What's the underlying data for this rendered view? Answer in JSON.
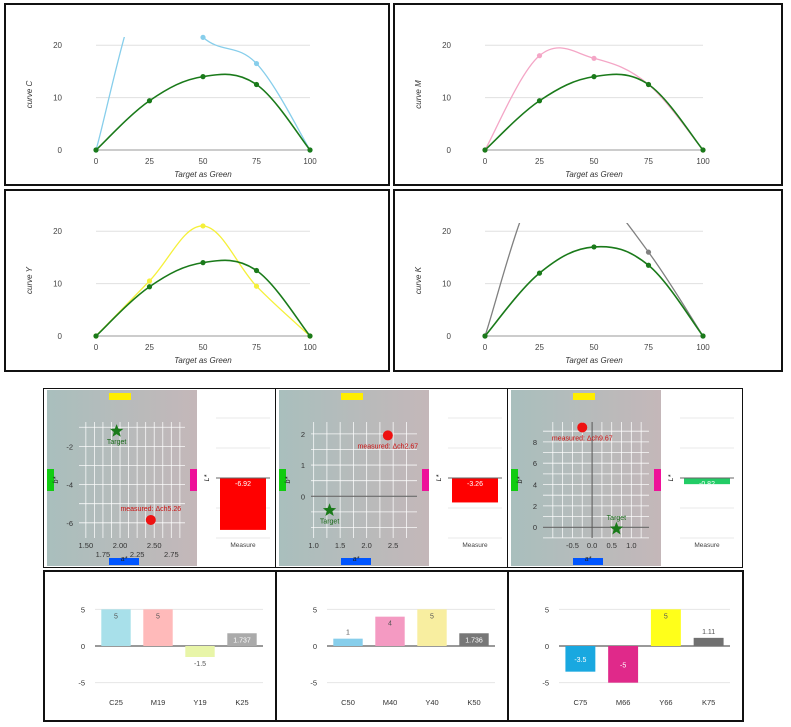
{
  "colors": {
    "green": "#1a7a1a",
    "cyan": "#87ceeb",
    "magenta": "#f4a6c6",
    "yellow": "#f5f03a",
    "black": "#808080",
    "grid": "#e0e0e0"
  },
  "chart_data": [
    {
      "type": "line",
      "xlabel": "Target as Green",
      "ylabel": "curve C",
      "xlim": [
        0,
        100
      ],
      "ylim": [
        0,
        25
      ],
      "xticks": [
        0,
        25,
        50,
        75,
        100
      ],
      "yticks": [
        0,
        10,
        20
      ],
      "grid": true,
      "series": [
        {
          "color": "cyan",
          "x": [
            0,
            25,
            50,
            75,
            100
          ],
          "y": [
            0,
            34,
            21.5,
            16.5,
            0
          ]
        },
        {
          "color": "green",
          "x": [
            0,
            25,
            50,
            75,
            100
          ],
          "y": [
            0,
            9.4,
            14,
            12.5,
            0
          ]
        }
      ]
    },
    {
      "type": "line",
      "xlabel": "Target as Green",
      "ylabel": "curve M",
      "xlim": [
        0,
        100
      ],
      "ylim": [
        0,
        25
      ],
      "xticks": [
        0,
        25,
        50,
        75,
        100
      ],
      "yticks": [
        0,
        10,
        20
      ],
      "grid": true,
      "series": [
        {
          "color": "magenta",
          "x": [
            0,
            25,
            50,
            75,
            100
          ],
          "y": [
            0,
            18,
            17.5,
            12.5,
            0
          ]
        },
        {
          "color": "green",
          "x": [
            0,
            25,
            50,
            75,
            100
          ],
          "y": [
            0,
            9.4,
            14,
            12.5,
            0
          ]
        }
      ]
    },
    {
      "type": "line",
      "xlabel": "Target as Green",
      "ylabel": "curve Y",
      "xlim": [
        0,
        100
      ],
      "ylim": [
        0,
        25
      ],
      "xticks": [
        0,
        25,
        50,
        75,
        100
      ],
      "yticks": [
        0,
        10,
        20
      ],
      "grid": true,
      "series": [
        {
          "color": "yellow",
          "x": [
            0,
            25,
            50,
            75,
            100
          ],
          "y": [
            0,
            10.5,
            21,
            9.5,
            0
          ]
        },
        {
          "color": "green",
          "x": [
            0,
            25,
            50,
            75,
            100
          ],
          "y": [
            0,
            9.4,
            14,
            12.5,
            0
          ]
        }
      ]
    },
    {
      "type": "line",
      "xlabel": "Target as Green",
      "ylabel": "curve K",
      "xlim": [
        0,
        100
      ],
      "ylim": [
        0,
        25
      ],
      "xticks": [
        0,
        25,
        50,
        75,
        100
      ],
      "yticks": [
        0,
        10,
        20
      ],
      "grid": true,
      "series": [
        {
          "color": "black",
          "x": [
            0,
            25,
            50,
            75,
            100
          ],
          "y": [
            0,
            30,
            28,
            16,
            0
          ]
        },
        {
          "color": "green",
          "x": [
            0,
            25,
            50,
            75,
            100
          ],
          "y": [
            0,
            12,
            17,
            13.5,
            0
          ]
        }
      ]
    },
    {
      "type": "scatter",
      "xlabel": "a*",
      "ylabel": "b*",
      "xlim": [
        1.4,
        2.95
      ],
      "ylim": [
        -6.9,
        -0.2
      ],
      "xticks": [
        {
          "v": 1.5,
          "t": "1.50",
          "row": 0
        },
        {
          "v": 1.75,
          "t": "1.75",
          "row": 1
        },
        {
          "v": 2.0,
          "t": "2.00",
          "row": 0
        },
        {
          "v": 2.25,
          "t": "2.25",
          "row": 1
        },
        {
          "v": 2.5,
          "t": "2.50",
          "row": 0
        },
        {
          "v": 2.75,
          "t": "2.75",
          "row": 1
        }
      ],
      "yticks": [
        -2,
        -4,
        -6
      ],
      "target": {
        "x": 1.95,
        "y": -1.2,
        "label": "Target"
      },
      "measured": {
        "x": 2.45,
        "y": -5.85,
        "label": "measured: Δch5.26"
      }
    },
    {
      "type": "bar",
      "ylabel": "L*",
      "categories": [
        "Measure"
      ],
      "values": [
        -6.92
      ],
      "ylim": [
        -8,
        8
      ],
      "value_color": "#ffffff"
    },
    {
      "type": "scatter",
      "xlabel": "a*",
      "ylabel": "b*",
      "xlim": [
        0.95,
        2.95
      ],
      "ylim": [
        -1.4,
        2.7
      ],
      "xticks": [
        {
          "v": 1.0,
          "t": "1.0",
          "row": 0
        },
        {
          "v": 1.5,
          "t": "1.5",
          "row": 0
        },
        {
          "v": 2.0,
          "t": "2.0",
          "row": 0
        },
        {
          "v": 2.5,
          "t": "2.5",
          "row": 0
        }
      ],
      "yticks": [
        2,
        1,
        0
      ],
      "target": {
        "x": 1.3,
        "y": -0.45,
        "label": "Target"
      },
      "measured": {
        "x": 2.4,
        "y": 1.95,
        "label": "measured: Δch2.67"
      }
    },
    {
      "type": "bar",
      "ylabel": "L*",
      "categories": [
        "Measure"
      ],
      "values": [
        -3.26
      ],
      "ylim": [
        -8,
        8
      ],
      "value_color": "#ffffff"
    },
    {
      "type": "scatter",
      "xlabel": "a*",
      "ylabel": "b*",
      "xlim": [
        -1.25,
        1.45
      ],
      "ylim": [
        -1.2,
        10.8
      ],
      "xticks": [
        {
          "v": -0.5,
          "t": "-0.5",
          "row": 0
        },
        {
          "v": 0,
          "t": "0.0",
          "row": 0
        },
        {
          "v": 0.5,
          "t": "0.5",
          "row": 0
        },
        {
          "v": 1.0,
          "t": "1.0",
          "row": 0
        }
      ],
      "yticks": [
        8,
        6,
        4,
        2,
        0
      ],
      "target": {
        "x": 0.62,
        "y": -0.15,
        "label": "Target"
      },
      "measured": {
        "x": -0.25,
        "y": 9.35,
        "label": "measured: Δch9.67"
      }
    },
    {
      "type": "bar",
      "ylabel": "L*",
      "categories": [
        "Measure"
      ],
      "values": [
        -0.82
      ],
      "ylim": [
        -8,
        8
      ],
      "value_color": "#ffffff"
    },
    {
      "type": "bar",
      "categories": [
        "C25",
        "M19",
        "Y19",
        "K25"
      ],
      "values": [
        5,
        5,
        -1.5,
        1.737
      ],
      "labels": [
        "5",
        "5",
        "-1.5",
        "1.737"
      ],
      "ylim": [
        -6,
        6
      ],
      "yticks": [
        5,
        0,
        -5
      ],
      "bar_colors": [
        "#a8e0ea",
        "#ffbaba",
        "#e8f5a8",
        "#aaaaaa"
      ],
      "label_colors": [
        "#555555",
        "#555555",
        "#555555",
        "#ffffff"
      ]
    },
    {
      "type": "bar",
      "categories": [
        "C50",
        "M40",
        "Y40",
        "K50"
      ],
      "values": [
        1,
        4,
        5,
        1.736
      ],
      "labels": [
        "1",
        "4",
        "5",
        "1.736"
      ],
      "ylim": [
        -6,
        6
      ],
      "yticks": [
        5,
        0,
        -5
      ],
      "bar_colors": [
        "#87ceeb",
        "#f49ac2",
        "#f8eea0",
        "#777777"
      ],
      "label_colors": [
        "#555555",
        "#555555",
        "#555555",
        "#ffffff"
      ]
    },
    {
      "type": "bar",
      "categories": [
        "C75",
        "M66",
        "Y66",
        "K75"
      ],
      "values": [
        -3.5,
        -5,
        5,
        1.11
      ],
      "labels": [
        "-3.5",
        "-5",
        "5",
        "1.11"
      ],
      "ylim": [
        -6,
        6
      ],
      "yticks": [
        5,
        0,
        -5
      ],
      "bar_colors": [
        "#19a8e0",
        "#e0298a",
        "#ffff1a",
        "#707070"
      ],
      "label_colors": [
        "#ffffff",
        "#ffffff",
        "#555555",
        "#555555"
      ]
    }
  ]
}
